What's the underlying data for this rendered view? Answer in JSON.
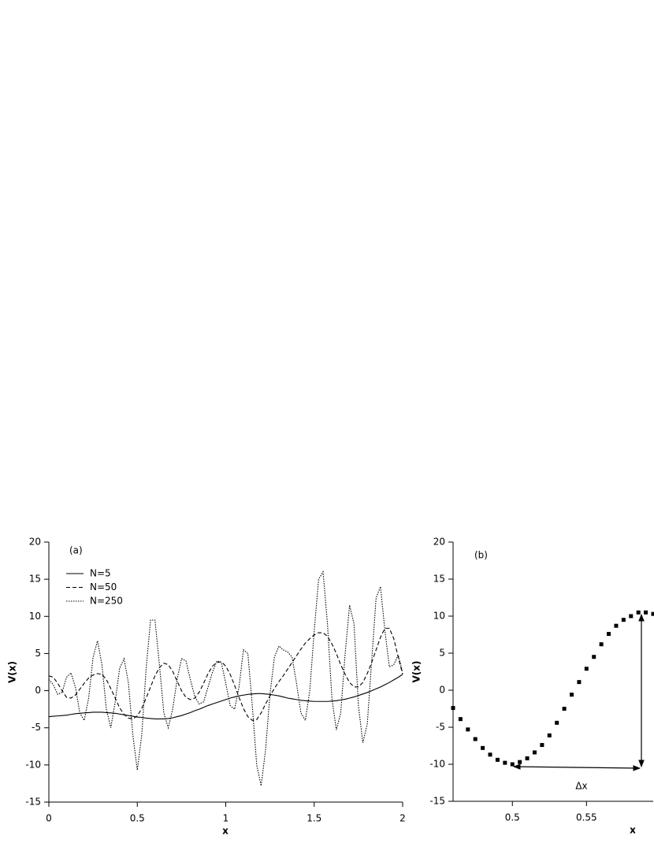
{
  "chart_data": [
    {
      "type": "line",
      "annotation": "(a)",
      "x_label": "x",
      "y_label": "V(x)",
      "xlim": [
        0,
        2
      ],
      "ylim": [
        -15,
        20
      ],
      "xticks": [
        0,
        0.5,
        1,
        1.5,
        2
      ],
      "yticks": [
        -15,
        -10,
        -5,
        0,
        5,
        10,
        15,
        20
      ],
      "x": [
        0,
        0.025,
        0.05,
        0.075,
        0.1,
        0.125,
        0.15,
        0.175,
        0.2,
        0.225,
        0.25,
        0.275,
        0.3,
        0.325,
        0.35,
        0.375,
        0.4,
        0.425,
        0.45,
        0.475,
        0.5,
        0.525,
        0.55,
        0.575,
        0.6,
        0.625,
        0.65,
        0.675,
        0.7,
        0.725,
        0.75,
        0.775,
        0.8,
        0.825,
        0.85,
        0.875,
        0.9,
        0.925,
        0.95,
        0.975,
        1.0,
        1.025,
        1.05,
        1.075,
        1.1,
        1.125,
        1.15,
        1.175,
        1.2,
        1.225,
        1.25,
        1.275,
        1.3,
        1.325,
        1.35,
        1.375,
        1.4,
        1.425,
        1.45,
        1.475,
        1.5,
        1.525,
        1.55,
        1.575,
        1.6,
        1.625,
        1.65,
        1.675,
        1.7,
        1.725,
        1.75,
        1.775,
        1.8,
        1.825,
        1.85,
        1.875,
        1.9,
        1.925,
        1.95,
        1.975,
        2.0
      ],
      "series": [
        {
          "name": "N=5",
          "color": "#000000",
          "linestyle": "solid",
          "values": [
            -3.5,
            -3.45,
            -3.4,
            -3.35,
            -3.3,
            -3.2,
            -3.1,
            -3.05,
            -3,
            -2.95,
            -2.9,
            -2.9,
            -2.9,
            -2.95,
            -3,
            -3.05,
            -3.15,
            -3.25,
            -3.35,
            -3.45,
            -3.55,
            -3.6,
            -3.7,
            -3.75,
            -3.8,
            -3.8,
            -3.8,
            -3.75,
            -3.65,
            -3.5,
            -3.35,
            -3.15,
            -2.95,
            -2.7,
            -2.5,
            -2.25,
            -2,
            -1.8,
            -1.6,
            -1.4,
            -1.2,
            -1,
            -0.85,
            -0.7,
            -0.6,
            -0.5,
            -0.45,
            -0.4,
            -0.4,
            -0.45,
            -0.5,
            -0.6,
            -0.7,
            -0.85,
            -1,
            -1.1,
            -1.2,
            -1.3,
            -1.35,
            -1.4,
            -1.45,
            -1.45,
            -1.45,
            -1.45,
            -1.4,
            -1.35,
            -1.25,
            -1.15,
            -1,
            -0.85,
            -0.65,
            -0.45,
            -0.25,
            0,
            0.25,
            0.5,
            0.8,
            1.1,
            1.45,
            1.8,
            2.2
          ]
        },
        {
          "name": "N=50",
          "color": "#000000",
          "linestyle": "dashed",
          "values": [
            2,
            1.8,
            1.0,
            0,
            -0.9,
            -1,
            -0.6,
            0.2,
            1,
            1.7,
            2.1,
            2.3,
            2.2,
            1.5,
            0.3,
            -1,
            -2.3,
            -3.2,
            -3.7,
            -3.8,
            -3.4,
            -2.4,
            -1,
            0.5,
            2,
            3.1,
            3.7,
            3.5,
            2.6,
            1.3,
            0,
            -0.9,
            -1.2,
            -1,
            -0.2,
            1,
            2.3,
            3.3,
            3.8,
            3.9,
            3.3,
            2.2,
            0.7,
            -0.9,
            -2.4,
            -3.5,
            -4,
            -3.9,
            -3,
            -1.8,
            -0.7,
            0.3,
            1.2,
            2,
            2.9,
            3.8,
            4.7,
            5.6,
            6.4,
            7,
            7.5,
            7.8,
            7.8,
            7.3,
            6.3,
            5,
            3.5,
            2.2,
            1.1,
            0.5,
            0.5,
            1.1,
            2.3,
            3.8,
            5.5,
            7.2,
            8.4,
            8.4,
            7,
            4.5,
            2.2
          ]
        },
        {
          "name": "N=250",
          "color": "#000000",
          "linestyle": "dotted",
          "values": [
            1.5,
            0.8,
            -0.5,
            -0.2,
            1.8,
            2.4,
            0.5,
            -3,
            -4,
            -1,
            4.5,
            6.7,
            3.5,
            -2.5,
            -5,
            -1.5,
            3,
            4.3,
            1,
            -6,
            -10.7,
            -6,
            3,
            9.5,
            9.5,
            3.5,
            -3,
            -5,
            -2.5,
            1.5,
            4.3,
            4,
            1.5,
            -0.8,
            -1.8,
            -1.5,
            0.5,
            2.5,
            4,
            3.8,
            1,
            -2,
            -2.5,
            0.5,
            5.5,
            5,
            -2,
            -10,
            -12.8,
            -8,
            -0.5,
            4.5,
            6,
            5.5,
            5.2,
            4.5,
            1,
            -3,
            -4,
            0,
            8,
            15,
            16,
            9,
            -1,
            -5.3,
            -3,
            5,
            11.5,
            9,
            -2,
            -7,
            -4.5,
            4,
            12.5,
            14,
            8,
            3.2,
            3.5,
            4.8,
            2.5
          ]
        }
      ]
    },
    {
      "type": "scatter",
      "annotation": "(b)",
      "x_label": "x",
      "y_label": "V(x)",
      "arrow_label": "Δx",
      "color": "#000000",
      "xlim": [
        0.46,
        0.595
      ],
      "ylim": [
        -15,
        20
      ],
      "xticks": [
        0.5,
        0.55
      ],
      "yticks": [
        -15,
        -10,
        -5,
        0,
        5,
        10,
        15,
        20
      ],
      "x": [
        0.46,
        0.465,
        0.47,
        0.475,
        0.48,
        0.485,
        0.49,
        0.495,
        0.5,
        0.505,
        0.51,
        0.515,
        0.52,
        0.525,
        0.53,
        0.535,
        0.54,
        0.545,
        0.55,
        0.555,
        0.56,
        0.565,
        0.57,
        0.575,
        0.58,
        0.585,
        0.59,
        0.595
      ],
      "values": [
        -2.4,
        -3.9,
        -5.3,
        -6.6,
        -7.8,
        -8.7,
        -9.4,
        -9.8,
        -10.0,
        -9.7,
        -9.2,
        -8.4,
        -7.4,
        -6.1,
        -4.4,
        -2.5,
        -0.6,
        1.1,
        2.9,
        4.5,
        6.2,
        7.6,
        8.7,
        9.5,
        10.0,
        10.5,
        10.5,
        10.3
      ]
    }
  ]
}
